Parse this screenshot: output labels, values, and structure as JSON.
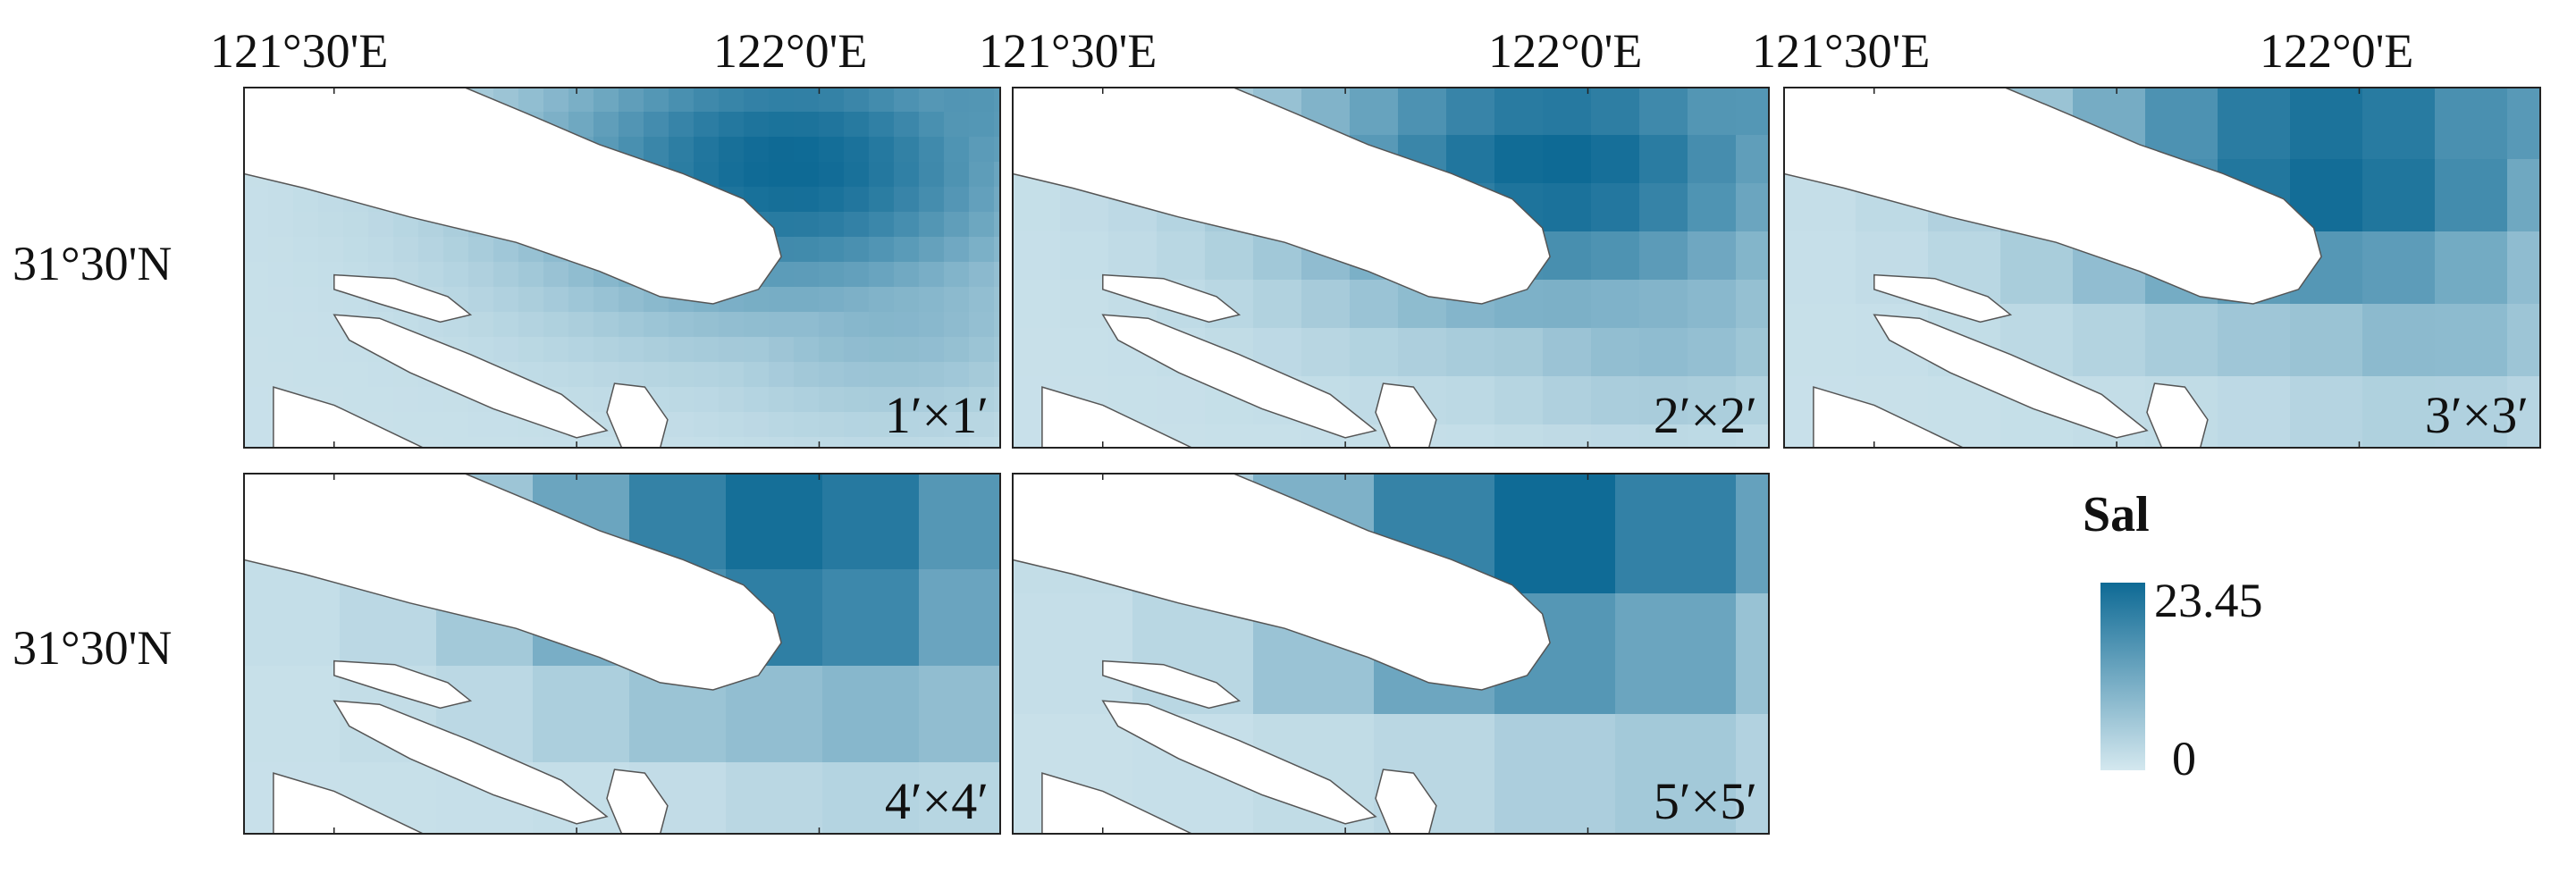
{
  "axes": {
    "lon_labels": [
      "121°30'E",
      "122°0'E"
    ],
    "lat_label": "31°30'N"
  },
  "panels": [
    {
      "id": "p1",
      "resolution_label": "1′×1′",
      "resolution_arcmin": 1
    },
    {
      "id": "p2",
      "resolution_label": "2′×2′",
      "resolution_arcmin": 2
    },
    {
      "id": "p3",
      "resolution_label": "3′×3′",
      "resolution_arcmin": 3
    },
    {
      "id": "p4",
      "resolution_label": "4′×4′",
      "resolution_arcmin": 4
    },
    {
      "id": "p5",
      "resolution_label": "5′×5′",
      "resolution_arcmin": 5
    }
  ],
  "legend": {
    "title": "Sal",
    "max_label": "23.45",
    "min_label": "0",
    "max_value": 23.45,
    "min_value": 0,
    "color_low": "#d4e8ef",
    "color_high": "#0e6a95"
  },
  "colors": {
    "land": "#ffffff",
    "coast": "#555555",
    "frame": "#222222"
  }
}
